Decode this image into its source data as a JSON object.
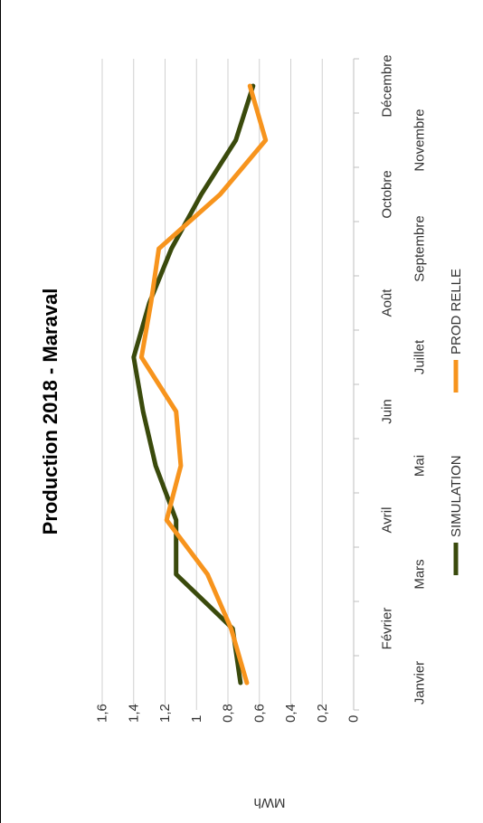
{
  "chart_data": {
    "type": "line",
    "title": "Production 2018 - Maraval",
    "ylabel": "MWh",
    "xlabel": "",
    "categories": [
      "Janvier",
      "Février",
      "Mars",
      "Avril",
      "Mai",
      "Juin",
      "Juillet",
      "Août",
      "Septembre",
      "Octobre",
      "Novembre",
      "Décembre"
    ],
    "ylim": [
      0,
      1.6
    ],
    "yticks": [
      "0",
      "0,2",
      "0,4",
      "0,6",
      "0,8",
      "1",
      "1,2",
      "1,4",
      "1,6"
    ],
    "grid": true,
    "legend_position": "bottom",
    "orientation": "rotated 90° counter-clockwise",
    "series": [
      {
        "name": "SIMULATION",
        "color": "#3a4a0c",
        "values": [
          0.72,
          0.77,
          1.13,
          1.13,
          1.26,
          1.34,
          1.4,
          1.3,
          1.16,
          0.97,
          0.75,
          0.64
        ]
      },
      {
        "name": "PROD RELLE",
        "color": "#f7941d",
        "values": [
          0.68,
          0.78,
          0.93,
          1.19,
          1.1,
          1.13,
          1.35,
          1.29,
          1.24,
          0.85,
          0.56,
          0.66
        ]
      }
    ]
  }
}
